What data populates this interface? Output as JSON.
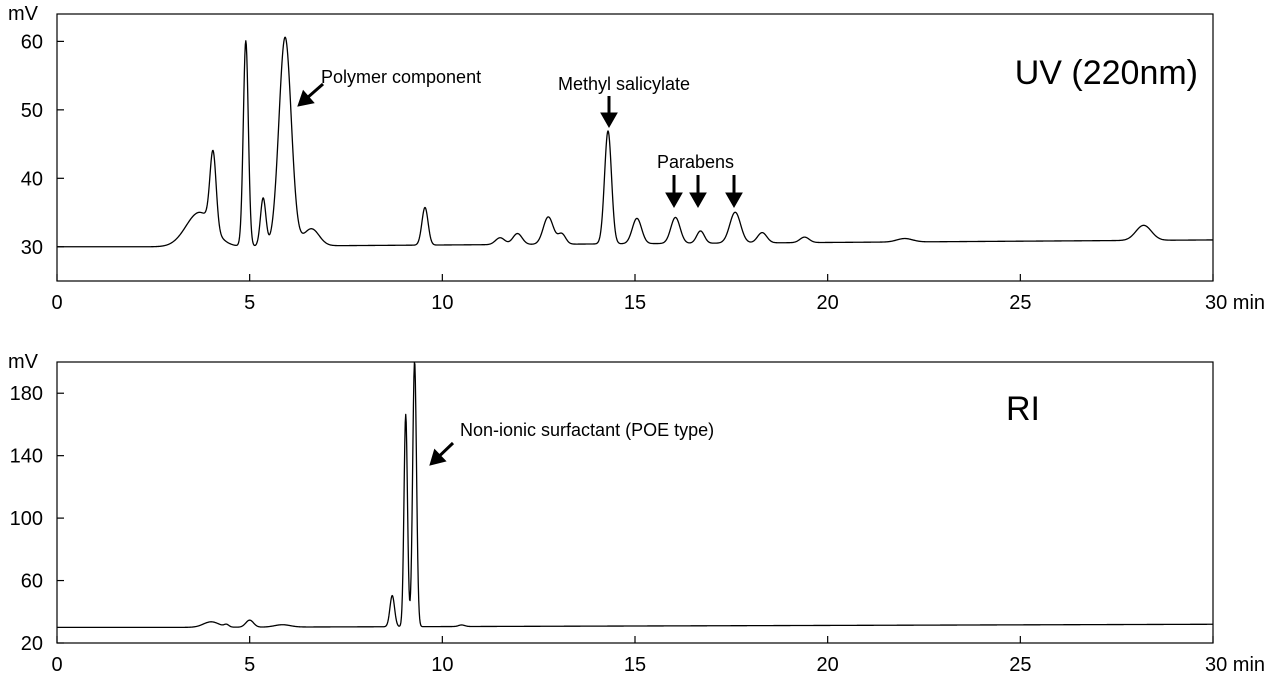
{
  "chart_data": [
    {
      "type": "line",
      "title": "UV (220nm)",
      "y_unit": "mV",
      "x_unit": "min",
      "xlim": [
        0,
        30
      ],
      "ylim": [
        25,
        64
      ],
      "x_ticks": [
        0,
        5,
        10,
        15,
        20,
        25,
        30
      ],
      "x_tick_labels": [
        "0",
        "5",
        "10",
        "15",
        "20",
        "25",
        "30 min"
      ],
      "y_ticks": [
        30,
        40,
        50,
        60
      ],
      "y_tick_labels": [
        "30",
        "40",
        "50",
        "60"
      ],
      "baseline": [
        [
          0,
          30
        ],
        [
          2.9,
          30
        ],
        [
          30,
          31
        ]
      ],
      "peaks": [
        {
          "t": 3.7,
          "h": 5.0,
          "w": 0.35
        },
        {
          "t": 4.05,
          "h": 11.0,
          "w": 0.08
        },
        {
          "t": 4.9,
          "h": 30.0,
          "w": 0.065
        },
        {
          "t": 5.35,
          "h": 7.0,
          "w": 0.07
        },
        {
          "t": 5.92,
          "h": 30.5,
          "w": 0.16
        },
        {
          "t": 6.6,
          "h": 2.5,
          "w": 0.2
        },
        {
          "t": 9.55,
          "h": 5.5,
          "w": 0.08
        },
        {
          "t": 11.5,
          "h": 1.0,
          "w": 0.12
        },
        {
          "t": 11.95,
          "h": 1.6,
          "w": 0.12
        },
        {
          "t": 12.75,
          "h": 4.0,
          "w": 0.13
        },
        {
          "t": 13.1,
          "h": 1.5,
          "w": 0.1
        },
        {
          "t": 14.3,
          "h": 16.5,
          "w": 0.09
        },
        {
          "t": 15.05,
          "h": 3.7,
          "w": 0.12
        },
        {
          "t": 16.05,
          "h": 3.8,
          "w": 0.12
        },
        {
          "t": 16.7,
          "h": 1.8,
          "w": 0.1
        },
        {
          "t": 17.6,
          "h": 4.5,
          "w": 0.14
        },
        {
          "t": 18.3,
          "h": 1.5,
          "w": 0.12
        },
        {
          "t": 19.4,
          "h": 0.8,
          "w": 0.12
        },
        {
          "t": 22.0,
          "h": 0.5,
          "w": 0.2
        },
        {
          "t": 28.2,
          "h": 2.2,
          "w": 0.2
        }
      ],
      "annotations": [
        {
          "text": "Polymer component",
          "target": [
            6.0,
            55.0
          ],
          "arrow": "down-left"
        },
        {
          "text": "Methyl salicylate",
          "target": [
            14.3,
            49.0
          ],
          "arrow": "down"
        },
        {
          "text": "Parabens",
          "target": [
            16.05,
            36.0
          ],
          "arrow": "down"
        },
        {
          "text": "",
          "target": [
            16.7,
            36.0
          ],
          "arrow": "down"
        },
        {
          "text": "",
          "target": [
            17.6,
            36.0
          ],
          "arrow": "down"
        }
      ]
    },
    {
      "type": "line",
      "title": "RI",
      "y_unit": "mV",
      "x_unit": "min",
      "xlim": [
        0,
        30
      ],
      "ylim": [
        20,
        200
      ],
      "x_ticks": [
        0,
        5,
        10,
        15,
        20,
        25,
        30
      ],
      "x_tick_labels": [
        "0",
        "5",
        "10",
        "15",
        "20",
        "25",
        "30 min"
      ],
      "y_ticks": [
        20,
        60,
        100,
        140,
        180
      ],
      "y_tick_labels": [
        "20",
        "60",
        "100",
        "140",
        "180"
      ],
      "baseline": [
        [
          0,
          30
        ],
        [
          3.0,
          30
        ],
        [
          30,
          32
        ]
      ],
      "peaks": [
        {
          "t": 4.0,
          "h": 3.5,
          "w": 0.2
        },
        {
          "t": 4.4,
          "h": 1.5,
          "w": 0.06
        },
        {
          "t": 5.0,
          "h": 4.5,
          "w": 0.1
        },
        {
          "t": 5.85,
          "h": 1.5,
          "w": 0.2
        },
        {
          "t": 8.7,
          "h": 20.0,
          "w": 0.06
        },
        {
          "t": 9.05,
          "h": 136.0,
          "w": 0.045
        },
        {
          "t": 9.28,
          "h": 170.0,
          "w": 0.05
        },
        {
          "t": 10.5,
          "h": 1.0,
          "w": 0.08
        }
      ],
      "annotations": [
        {
          "text": "Non-ionic surfactant (POE type)",
          "target": [
            9.6,
            150.0
          ],
          "arrow": "down-left"
        }
      ]
    }
  ]
}
